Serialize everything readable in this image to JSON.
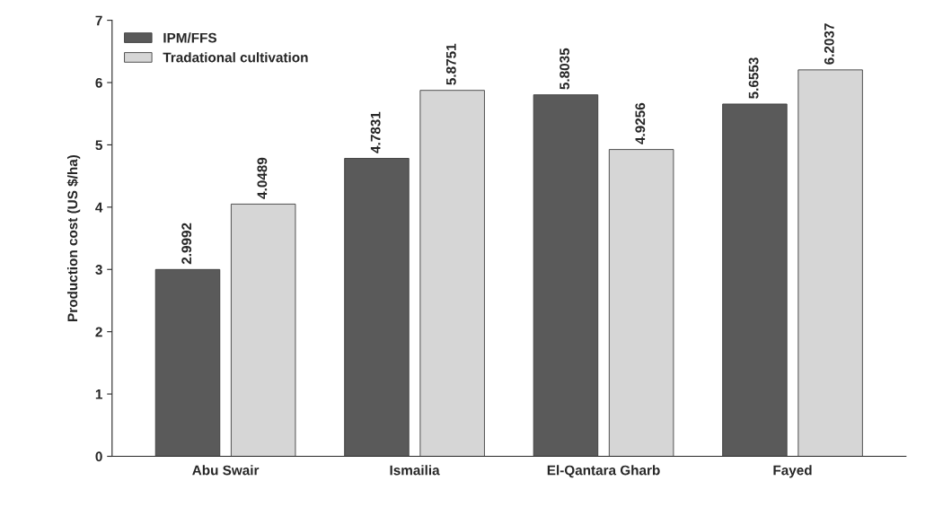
{
  "chart_data": {
    "type": "bar",
    "ylabel": "Production cost (US $/ha)",
    "categories": [
      "Abu Swair",
      "Ismailia",
      "El-Qantara Gharb",
      "Fayed"
    ],
    "series": [
      {
        "name": "IPM/FFS",
        "color": "#5a5a5a",
        "values": [
          2.9992,
          4.7831,
          5.8035,
          5.6553
        ]
      },
      {
        "name": "Tradational cultivation",
        "color": "#d6d6d6",
        "values": [
          4.0489,
          5.8751,
          4.9256,
          6.2037
        ]
      }
    ],
    "ylim": [
      0,
      7
    ],
    "yticks": [
      0,
      1,
      2,
      3,
      4,
      5,
      6,
      7
    ],
    "grid": false,
    "legend": "top left",
    "data_labels": true
  }
}
